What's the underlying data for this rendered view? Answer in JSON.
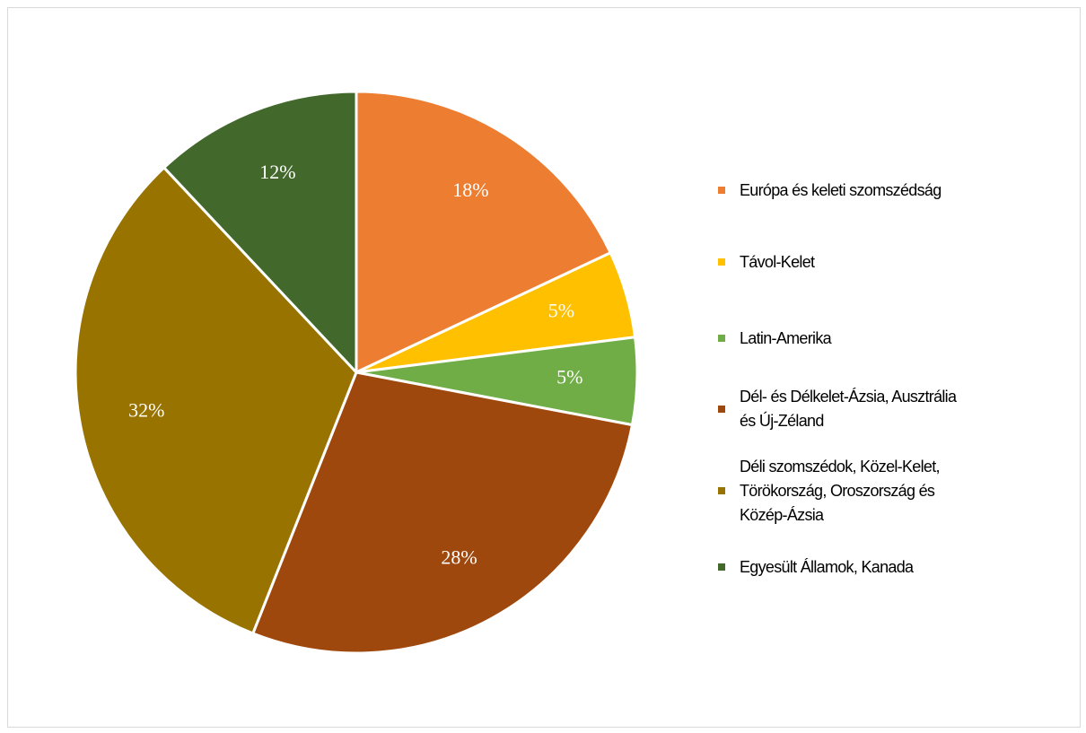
{
  "chart_data": {
    "type": "pie",
    "title": "",
    "start_angle_deg": 0,
    "direction": "clockwise",
    "slices": [
      {
        "label": "Európa és keleti szomszédság",
        "value": 18,
        "display": "18%",
        "color": "#ED7D31"
      },
      {
        "label": "Távol-Kelet",
        "value": 5,
        "display": "5%",
        "color": "#FFC000"
      },
      {
        "label": "Latin-Amerika",
        "value": 5,
        "display": "5%",
        "color": "#70AD47"
      },
      {
        "label": "Dél- és Délkelet-Ázsia, Ausztrália\nés Új-Zéland",
        "value": 28,
        "display": "28%",
        "color": "#9E480E"
      },
      {
        "label": "Déli szomszédok, Közel-Kelet,\nTörökország, Oroszország és\nKözép-Ázsia",
        "value": 32,
        "display": "32%",
        "color": "#997300"
      },
      {
        "label": "Egyesült Államok, Kanada",
        "value": 12,
        "display": "12%",
        "color": "#43682B"
      }
    ],
    "legend_position": "right"
  }
}
